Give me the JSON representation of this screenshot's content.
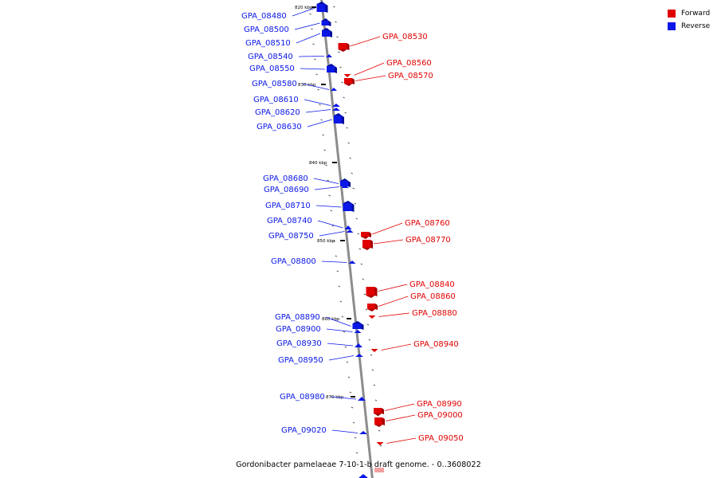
{
  "caption": "Gordonibacter pamelaeae 7-10-1-b draft genome. - 0..3608022",
  "legend": [
    {
      "label": "Forward",
      "color": "#e00000"
    },
    {
      "label": "Reverse",
      "color": "#0a17e6"
    }
  ],
  "colors": {
    "forward": "#e00000",
    "forward_dark": "#a40000",
    "reverse": "#0a17e6",
    "reverse_dark": "#000c9c",
    "axis": "#8c8c8c",
    "tick": "#111111"
  },
  "scale_ticks": [
    {
      "label": "820 kbp",
      "kbp": 820
    },
    {
      "label": "830 kbp",
      "kbp": 830
    },
    {
      "label": "840 kbp",
      "kbp": 840
    },
    {
      "label": "850 kbp",
      "kbp": 850
    },
    {
      "label": "860 kbp",
      "kbp": 860
    },
    {
      "label": "870 kbp",
      "kbp": 870
    }
  ],
  "genes": {
    "reverse": [
      "GPA_08480",
      "GPA_08500",
      "GPA_08510",
      "GPA_08540",
      "GPA_08550",
      "GPA_08580",
      "GPA_08610",
      "GPA_08620",
      "GPA_08630",
      "GPA_08680",
      "GPA_08690",
      "GPA_08710",
      "GPA_08740",
      "GPA_08750",
      "GPA_08800",
      "GPA_08890",
      "GPA_08900",
      "GPA_08930",
      "GPA_08950",
      "GPA_08980",
      "GPA_09020"
    ],
    "forward": [
      "GPA_08530",
      "GPA_08560",
      "GPA_08570",
      "GPA_08760",
      "GPA_08770",
      "GPA_08840",
      "GPA_08860",
      "GPA_08880",
      "GPA_08940",
      "GPA_08990",
      "GPA_09000",
      "GPA_09050"
    ]
  }
}
